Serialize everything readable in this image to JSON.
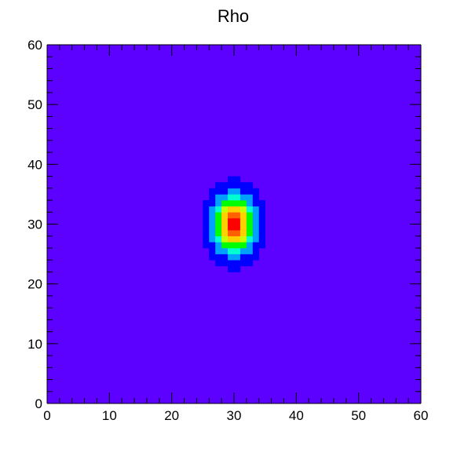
{
  "chart_data": {
    "type": "heatmap",
    "title": "Rho",
    "xlabel": "",
    "ylabel": "",
    "xlim": [
      0,
      60
    ],
    "ylim": [
      0,
      60
    ],
    "bins": [
      60,
      60
    ],
    "x_ticks": [
      "0",
      "10",
      "20",
      "30",
      "40",
      "50",
      "60"
    ],
    "y_ticks": [
      "0",
      "10",
      "20",
      "30",
      "40",
      "50",
      "60"
    ],
    "distribution": {
      "shape": "gaussian-peak",
      "center": [
        30,
        30
      ],
      "sigma_x": 2.3,
      "sigma_y": 3.2,
      "peak": 1.0,
      "background": 0.0
    },
    "palette": [
      "#5c00ff",
      "#0000ff",
      "#00a0ff",
      "#00ffd0",
      "#00ff00",
      "#c8ff00",
      "#ffd000",
      "#ff6000",
      "#ff0000"
    ],
    "grid": false,
    "legend": "none"
  }
}
